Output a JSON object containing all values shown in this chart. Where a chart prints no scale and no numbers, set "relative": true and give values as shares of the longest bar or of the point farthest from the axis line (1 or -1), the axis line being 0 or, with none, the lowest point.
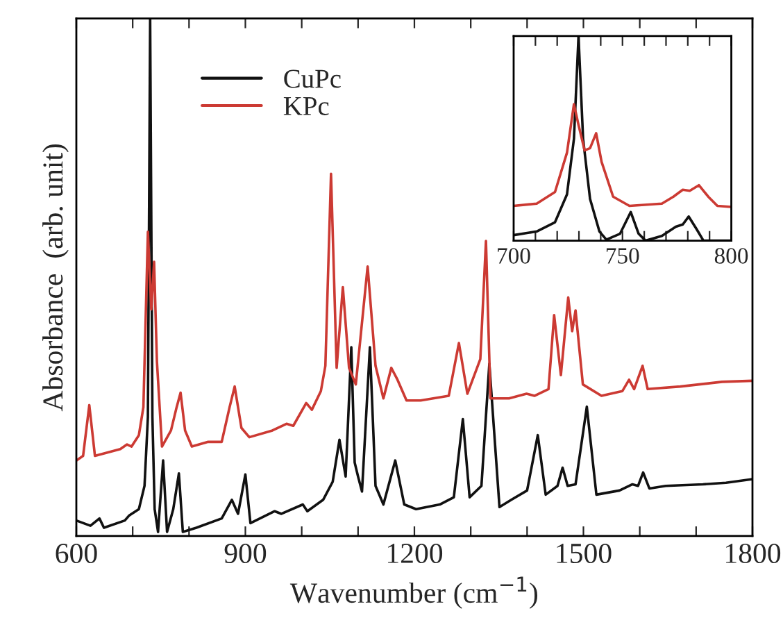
{
  "chart_data": [
    {
      "type": "line",
      "xlabel": "Wavenumber (cm$^{−1}$)",
      "ylabel": "Absorbance  (arb. unit)",
      "relative": true,
      "xlim": [
        600,
        1800
      ],
      "xticks": [
        600,
        {
          "value": 700,
          "label": null
        },
        {
          "value": 800,
          "label": null
        },
        900,
        {
          "value": 1000,
          "label": null
        },
        {
          "value": 1100,
          "label": null
        },
        1200,
        {
          "value": 1300,
          "label": null
        },
        {
          "value": 1400,
          "label": null
        },
        1500,
        {
          "value": 1600,
          "label": null
        },
        {
          "value": 1700,
          "label": null
        },
        1800
      ],
      "tick_labels": "x",
      "legend": "top left",
      "grid": false,
      "line_style": "solid",
      "marker": "none",
      "series": [
        {
          "name": "CuPc",
          "color": "#111111",
          "x": [
            600,
            625,
            641,
            649,
            686,
            694,
            711,
            721,
            727,
            731,
            735,
            739,
            745,
            754,
            761,
            772,
            782,
            789,
            801,
            813,
            858,
            876,
            887,
            900,
            909,
            952,
            964,
            1002,
            1010,
            1038,
            1055,
            1067,
            1078,
            1088,
            1094,
            1100,
            1107,
            1121,
            1131,
            1145,
            1166,
            1182,
            1203,
            1245,
            1270,
            1286,
            1298,
            1319,
            1333,
            1351,
            1372,
            1400,
            1419,
            1433,
            1454,
            1463,
            1472,
            1486,
            1506,
            1523,
            1564,
            1587,
            1597,
            1606,
            1617,
            1646,
            1712,
            1753,
            1800
          ],
          "values": [
            0.03,
            0.02,
            0.034,
            0.016,
            0.03,
            0.04,
            0.052,
            0.097,
            0.23,
            1.0,
            0.23,
            0.052,
            0.008,
            0.146,
            0.008,
            0.052,
            0.121,
            0.008,
            0.012,
            0.016,
            0.034,
            0.07,
            0.043,
            0.119,
            0.025,
            0.048,
            0.043,
            0.061,
            0.048,
            0.07,
            0.105,
            0.186,
            0.115,
            0.365,
            0.142,
            0.115,
            0.086,
            0.365,
            0.097,
            0.061,
            0.146,
            0.061,
            0.052,
            0.061,
            0.075,
            0.226,
            0.075,
            0.097,
            0.333,
            0.056,
            0.07,
            0.088,
            0.195,
            0.08,
            0.097,
            0.132,
            0.097,
            0.1,
            0.25,
            0.08,
            0.088,
            0.1,
            0.097,
            0.123,
            0.092,
            0.097,
            0.1,
            0.103,
            0.11
          ]
        },
        {
          "name": "KPc",
          "color": "#cc3a33",
          "x": [
            600,
            612,
            623,
            633,
            678,
            690,
            698,
            711,
            719,
            727,
            733,
            738,
            743,
            752,
            768,
            778,
            785,
            793,
            805,
            834,
            858,
            872,
            881,
            893,
            907,
            948,
            973,
            985,
            1008,
            1018,
            1034,
            1042,
            1052,
            1062,
            1073,
            1084,
            1096,
            1117,
            1131,
            1145,
            1159,
            1170,
            1186,
            1211,
            1261,
            1279,
            1294,
            1317,
            1327,
            1335,
            1368,
            1399,
            1413,
            1438,
            1448,
            1460,
            1473,
            1480,
            1486,
            1499,
            1532,
            1569,
            1581,
            1590,
            1605,
            1614,
            1672,
            1746,
            1800
          ],
          "values": [
            0.146,
            0.155,
            0.253,
            0.155,
            0.168,
            0.177,
            0.173,
            0.195,
            0.249,
            0.588,
            0.438,
            0.53,
            0.338,
            0.173,
            0.204,
            0.249,
            0.277,
            0.204,
            0.173,
            0.182,
            0.182,
            0.249,
            0.289,
            0.209,
            0.191,
            0.204,
            0.217,
            0.213,
            0.257,
            0.244,
            0.28,
            0.329,
            0.7,
            0.325,
            0.481,
            0.325,
            0.293,
            0.521,
            0.329,
            0.266,
            0.325,
            0.302,
            0.262,
            0.262,
            0.271,
            0.373,
            0.275,
            0.342,
            0.57,
            0.266,
            0.266,
            0.275,
            0.271,
            0.284,
            0.427,
            0.311,
            0.461,
            0.396,
            0.436,
            0.293,
            0.271,
            0.28,
            0.302,
            0.284,
            0.329,
            0.284,
            0.289,
            0.298,
            0.3
          ]
        }
      ]
    },
    {
      "type": "line",
      "relative": true,
      "xlim": [
        700,
        800
      ],
      "xticks": [
        700,
        {
          "value": 710,
          "label": null
        },
        {
          "value": 720,
          "label": null
        },
        {
          "value": 730,
          "label": null
        },
        {
          "value": 740,
          "label": null
        },
        750,
        {
          "value": 760,
          "label": null
        },
        {
          "value": 770,
          "label": null
        },
        {
          "value": 780,
          "label": null
        },
        {
          "value": 790,
          "label": null
        },
        800
      ],
      "tick_labels": "x",
      "grid": false,
      "line_style": "solid",
      "marker": "none",
      "series": [
        {
          "color": "#111111",
          "x": [
            700,
            710.6,
            719,
            724.5,
            727.7,
            729.8,
            731.9,
            735.1,
            739.4,
            742.6,
            748.9,
            753.8,
            757.4,
            760.6,
            768.1,
            774.5,
            777.7,
            780.4,
            784,
            787.2,
            800
          ],
          "values": [
            0.027,
            0.045,
            0.09,
            0.226,
            0.498,
            1.0,
            0.498,
            0.204,
            0.045,
            0.005,
            0.034,
            0.14,
            0.034,
            0,
            0.023,
            0.068,
            0.079,
            0.118,
            0.057,
            0,
            0
          ]
        },
        {
          "color": "#cc3a33",
          "x": [
            700,
            710.6,
            719,
            724.5,
            727.7,
            729.8,
            732.6,
            735.1,
            737.9,
            740.4,
            745.7,
            753.2,
            768.1,
            773.4,
            777.7,
            780.9,
            785.1,
            789.4,
            793.6,
            800
          ],
          "values": [
            0.17,
            0.181,
            0.238,
            0.43,
            0.667,
            0.566,
            0.441,
            0.452,
            0.525,
            0.385,
            0.215,
            0.17,
            0.181,
            0.215,
            0.249,
            0.244,
            0.271,
            0.215,
            0.17,
            0.165
          ]
        }
      ]
    }
  ]
}
